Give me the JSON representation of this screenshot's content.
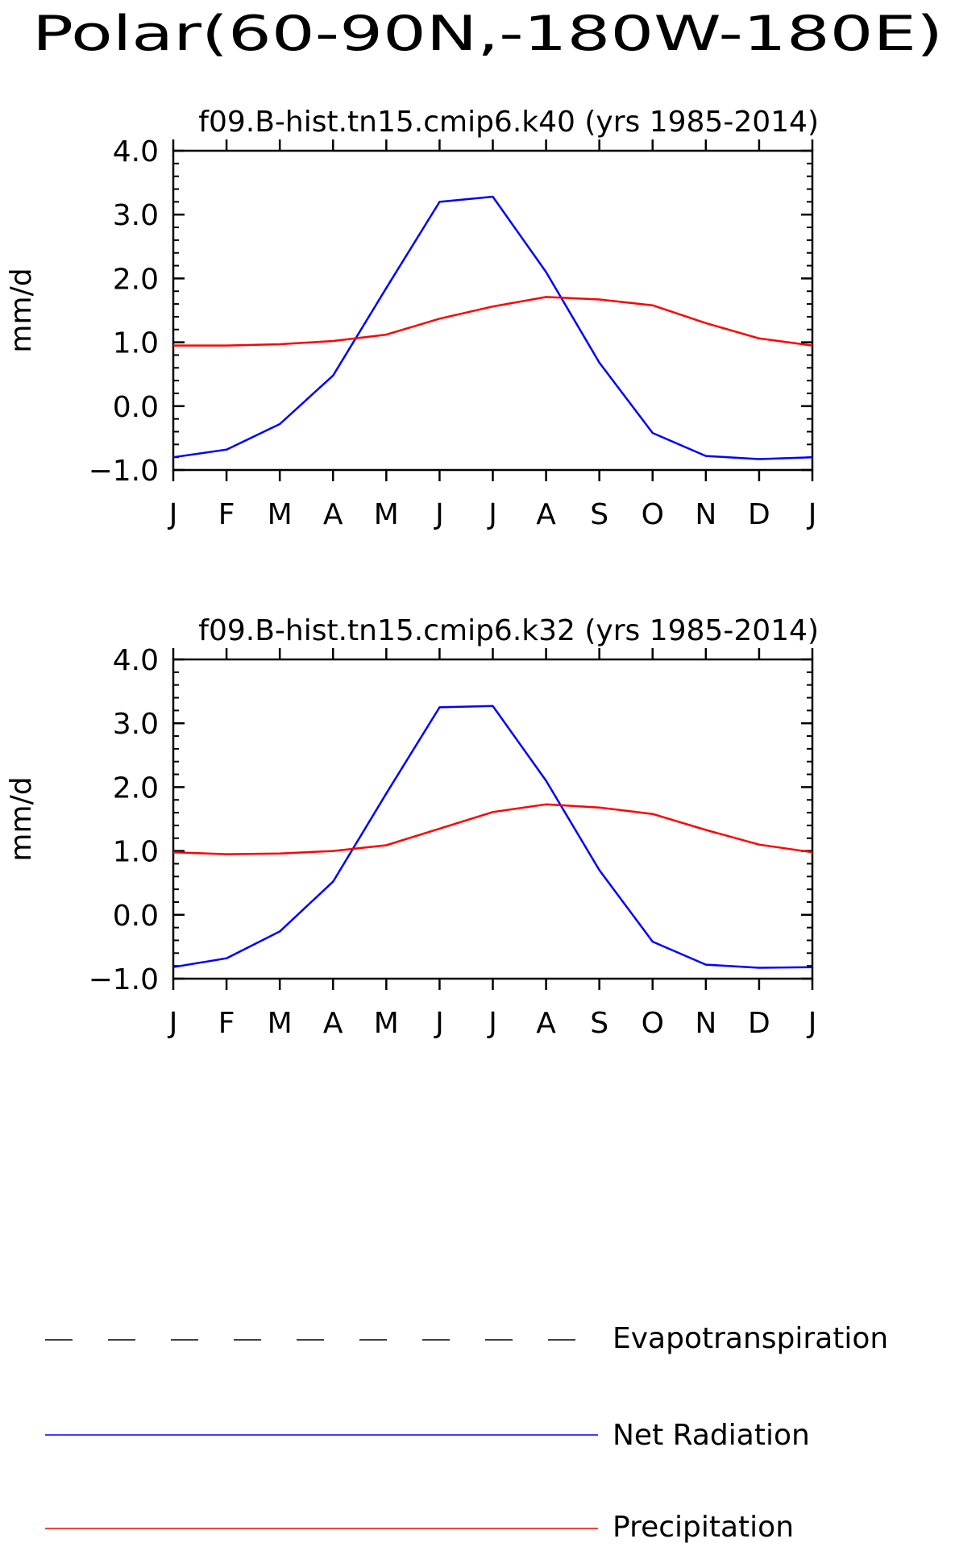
{
  "figure": {
    "title": "Polar(60-90N,-180W-180E)"
  },
  "chart_data": [
    {
      "type": "line",
      "title": "f09.B-hist.tn15.cmip6.k40 (yrs 1985-2014)",
      "ylabel": "mm/d",
      "xlabel": "",
      "ylim": [
        -1.0,
        4.0
      ],
      "yticks": [
        "4.0",
        "3.0",
        "2.0",
        "1.0",
        "0.0",
        "-1.0"
      ],
      "categories": [
        "J",
        "F",
        "M",
        "A",
        "M",
        "J",
        "J",
        "A",
        "S",
        "O",
        "N",
        "D",
        "J"
      ],
      "series": [
        {
          "name": "Net Radiation",
          "color": "#0000ff",
          "values": [
            -0.8,
            -0.68,
            -0.28,
            0.48,
            1.85,
            3.2,
            3.28,
            2.1,
            0.68,
            -0.42,
            -0.78,
            -0.83,
            -0.8
          ]
        },
        {
          "name": "Precipitation",
          "color": "#ff0000",
          "values": [
            0.95,
            0.95,
            0.97,
            1.02,
            1.12,
            1.37,
            1.56,
            1.71,
            1.67,
            1.58,
            1.3,
            1.06,
            0.95
          ]
        }
      ]
    },
    {
      "type": "line",
      "title": "f09.B-hist.tn15.cmip6.k32 (yrs 1985-2014)",
      "ylabel": "mm/d",
      "xlabel": "",
      "ylim": [
        -1.0,
        4.0
      ],
      "yticks": [
        "4.0",
        "3.0",
        "2.0",
        "1.0",
        "0.0",
        "-1.0"
      ],
      "categories": [
        "J",
        "F",
        "M",
        "A",
        "M",
        "J",
        "J",
        "A",
        "S",
        "O",
        "N",
        "D",
        "J"
      ],
      "series": [
        {
          "name": "Net Radiation",
          "color": "#0000ff",
          "values": [
            -0.82,
            -0.68,
            -0.26,
            0.52,
            1.9,
            3.25,
            3.27,
            2.1,
            0.7,
            -0.42,
            -0.78,
            -0.83,
            -0.82
          ]
        },
        {
          "name": "Precipitation",
          "color": "#ff0000",
          "values": [
            0.98,
            0.95,
            0.96,
            1.0,
            1.09,
            1.35,
            1.61,
            1.73,
            1.68,
            1.58,
            1.33,
            1.1,
            0.98
          ]
        }
      ]
    }
  ],
  "legend": [
    {
      "label": "Evapotranspiration",
      "color": "#000000",
      "style": "dashed"
    },
    {
      "label": "Net Radiation",
      "color": "#0000ff",
      "style": "solid"
    },
    {
      "label": "Precipitation",
      "color": "#ff0000",
      "style": "solid"
    }
  ]
}
